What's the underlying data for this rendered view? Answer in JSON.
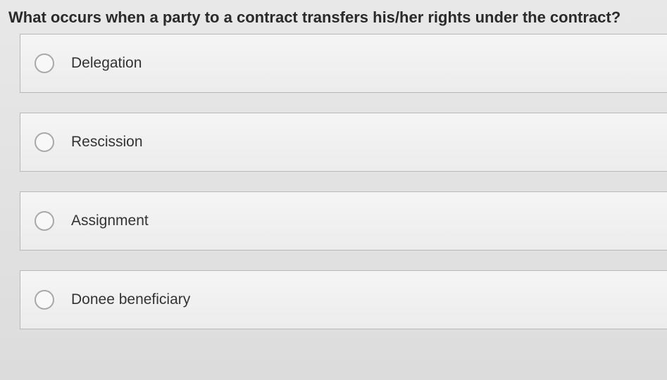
{
  "question": {
    "text": "What occurs when a party to a contract transfers his/her rights under the contract?",
    "fontsize": 22,
    "fontweight": 600,
    "color": "#2a2a2a"
  },
  "options": [
    {
      "label": "Delegation",
      "selected": false
    },
    {
      "label": "Rescission",
      "selected": false
    },
    {
      "label": "Assignment",
      "selected": false
    },
    {
      "label": "Donee beneficiary",
      "selected": false
    }
  ],
  "styling": {
    "background_gradient": [
      "#e8e8e8",
      "#dcdcdc"
    ],
    "option_background_gradient": [
      "#f5f5f5",
      "#ececec"
    ],
    "option_border_color": "#b8b8b8",
    "option_height": 84,
    "option_gap": 28,
    "radio_size": 28,
    "radio_border_color": "#a8a8a8",
    "radio_background": "#f8f8f8",
    "label_fontsize": 21,
    "label_color": "#333"
  }
}
